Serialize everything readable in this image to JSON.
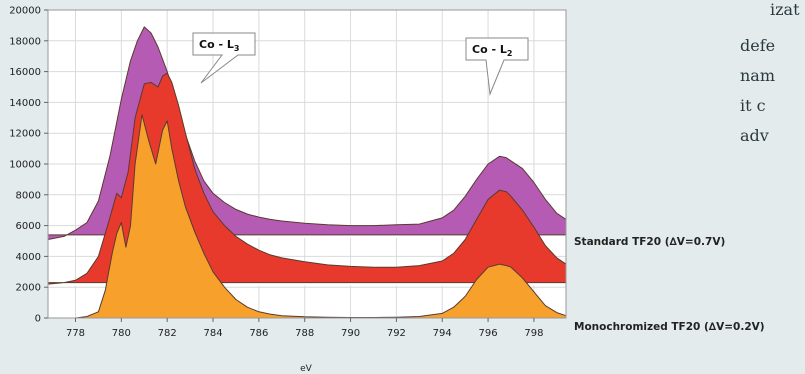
{
  "side_text": [
    "izat",
    "defe",
    "nam",
    "it c",
    "adv"
  ],
  "callouts": [
    {
      "main": "Co - L",
      "sub": "3",
      "x": 781.7,
      "y": 18500
    },
    {
      "main": "Co - L",
      "sub": "2",
      "x": 796.1,
      "y": 15200
    }
  ],
  "colors": {
    "purple": "#b65bb4",
    "red": "#e73a2c",
    "orange": "#f7a12c",
    "outline": "#5a3a30",
    "band_white": "#ffffff"
  },
  "chart_data": {
    "type": "area",
    "xlabel": "eV",
    "ylabel": "",
    "xlim": [
      776.8,
      799.4
    ],
    "ylim": [
      0,
      20000
    ],
    "x_ticks": [
      778,
      780,
      782,
      784,
      786,
      788,
      790,
      792,
      794,
      796,
      798
    ],
    "y_ticks": [
      0,
      2000,
      4000,
      6000,
      8000,
      10000,
      12000,
      14000,
      16000,
      18000,
      20000
    ],
    "grid": true,
    "annotations": [
      {
        "text": "Standard TF20 (∆V=0.7V)",
        "series": "Standard TF20 (∆V=0.7V)"
      },
      {
        "text": "Monochromized TF20 (∆V=0.2V)",
        "series": "Monochromized TF20 (∆V=0.2V)"
      }
    ],
    "series": [
      {
        "name": "Standard TF20 (∆V=0.7V)",
        "color": "#b65bb4",
        "baseline": 5400,
        "x": [
          776.8,
          777.5,
          778.0,
          778.5,
          779.0,
          779.5,
          780.0,
          780.4,
          780.7,
          781.0,
          781.3,
          781.6,
          782.0,
          782.4,
          782.8,
          783.2,
          783.6,
          784.0,
          784.5,
          785.0,
          785.5,
          786.0,
          786.5,
          787.0,
          788.0,
          789.0,
          790.0,
          791.0,
          792.0,
          793.0,
          794.0,
          794.5,
          795.0,
          795.5,
          796.0,
          796.5,
          796.8,
          797.0,
          797.5,
          798.0,
          798.5,
          799.0,
          799.4
        ],
        "values": [
          5100,
          5300,
          5700,
          6200,
          7600,
          10500,
          14200,
          16700,
          18000,
          18900,
          18500,
          17600,
          16000,
          14000,
          11900,
          10200,
          8900,
          8100,
          7500,
          7050,
          6750,
          6550,
          6400,
          6300,
          6150,
          6050,
          6000,
          6000,
          6050,
          6100,
          6500,
          7000,
          7900,
          9000,
          10000,
          10500,
          10400,
          10200,
          9700,
          8800,
          7700,
          6800,
          6400
        ]
      },
      {
        "name": "",
        "color": "#e73a2c",
        "baseline": 2300,
        "x": [
          776.8,
          777.5,
          778.0,
          778.5,
          779.0,
          779.4,
          779.8,
          780.0,
          780.3,
          780.6,
          781.0,
          781.3,
          781.6,
          781.8,
          782.0,
          782.2,
          782.5,
          782.8,
          783.2,
          783.6,
          784.0,
          784.5,
          785.0,
          785.5,
          786.0,
          786.5,
          787.0,
          788.0,
          789.0,
          790.0,
          791.0,
          792.0,
          793.0,
          794.0,
          794.5,
          795.0,
          795.5,
          796.0,
          796.5,
          796.8,
          797.0,
          797.5,
          798.0,
          798.5,
          799.0,
          799.4
        ],
        "values": [
          2200,
          2300,
          2450,
          2900,
          4000,
          6000,
          8100,
          7800,
          9500,
          13000,
          15200,
          15300,
          15000,
          15700,
          15900,
          15300,
          13800,
          12000,
          9700,
          8100,
          6900,
          6000,
          5300,
          4800,
          4400,
          4100,
          3900,
          3650,
          3450,
          3350,
          3300,
          3300,
          3400,
          3700,
          4200,
          5100,
          6400,
          7700,
          8300,
          8200,
          7900,
          7000,
          5900,
          4700,
          3900,
          3500
        ]
      },
      {
        "name": "Monochromized TF20 (∆V=0.2V)",
        "color": "#f7a12c",
        "baseline": 0,
        "x": [
          776.8,
          777.5,
          778.0,
          778.5,
          779.0,
          779.3,
          779.6,
          779.8,
          780.0,
          780.2,
          780.4,
          780.6,
          780.9,
          781.2,
          781.5,
          781.8,
          782.0,
          782.2,
          782.5,
          782.8,
          783.2,
          783.6,
          784.0,
          784.5,
          785.0,
          785.5,
          786.0,
          786.5,
          787.0,
          788.0,
          789.0,
          790.0,
          791.0,
          792.0,
          793.0,
          794.0,
          794.5,
          795.0,
          795.5,
          796.0,
          796.5,
          796.8,
          797.0,
          797.5,
          798.0,
          798.5,
          799.0,
          799.4
        ],
        "values": [
          0,
          0,
          0,
          100,
          400,
          1800,
          4200,
          5500,
          6200,
          4600,
          6000,
          10000,
          13200,
          11500,
          10000,
          12200,
          12800,
          11000,
          8900,
          7200,
          5600,
          4200,
          3000,
          2000,
          1200,
          700,
          400,
          250,
          150,
          80,
          50,
          30,
          30,
          50,
          100,
          300,
          700,
          1400,
          2500,
          3300,
          3500,
          3400,
          3300,
          2600,
          1700,
          800,
          350,
          150
        ]
      }
    ]
  }
}
